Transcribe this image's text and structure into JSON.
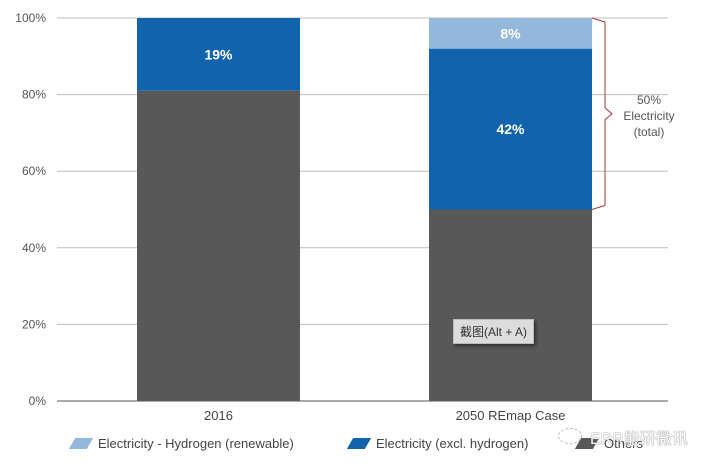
{
  "chart_data": {
    "type": "bar",
    "stacked": true,
    "title": "",
    "xlabel": "",
    "ylabel": "",
    "ylim": [
      0,
      100
    ],
    "yticks": [
      "0%",
      "20%",
      "40%",
      "60%",
      "80%",
      "100%"
    ],
    "ytick_values": [
      0,
      20,
      40,
      60,
      80,
      100
    ],
    "grid": true,
    "categories": [
      "2016",
      "2050 REmap Case"
    ],
    "series": [
      {
        "name": "Others",
        "color": "#585858",
        "values": [
          81,
          50
        ],
        "labels": [
          "",
          ""
        ]
      },
      {
        "name": "Electricity (excl. hydrogen)",
        "color": "#1164AC",
        "values": [
          19,
          42
        ],
        "labels": [
          "19%",
          "42%"
        ]
      },
      {
        "name": "Electricity - Hydrogen (renewable)",
        "color": "#94B8DC",
        "values": [
          0,
          8
        ],
        "labels": [
          "",
          "8%"
        ]
      }
    ],
    "annotation": {
      "lines": [
        "50%",
        "Electricity",
        "(total)"
      ],
      "bracket_range": [
        50,
        100
      ],
      "category": "2050 REmap Case",
      "color": "#A33A3A"
    },
    "legend": {
      "placement": "bottom",
      "items": [
        {
          "label": "Electricity - Hydrogen (renewable)",
          "color": "#94B8DC"
        },
        {
          "label": "Electricity (excl. hydrogen)",
          "color": "#1164AC"
        },
        {
          "label": "Others",
          "color": "#585858"
        }
      ]
    }
  },
  "overlay": {
    "tooltip": "截图(Alt + A)",
    "watermark": "ERR能研微讯"
  }
}
